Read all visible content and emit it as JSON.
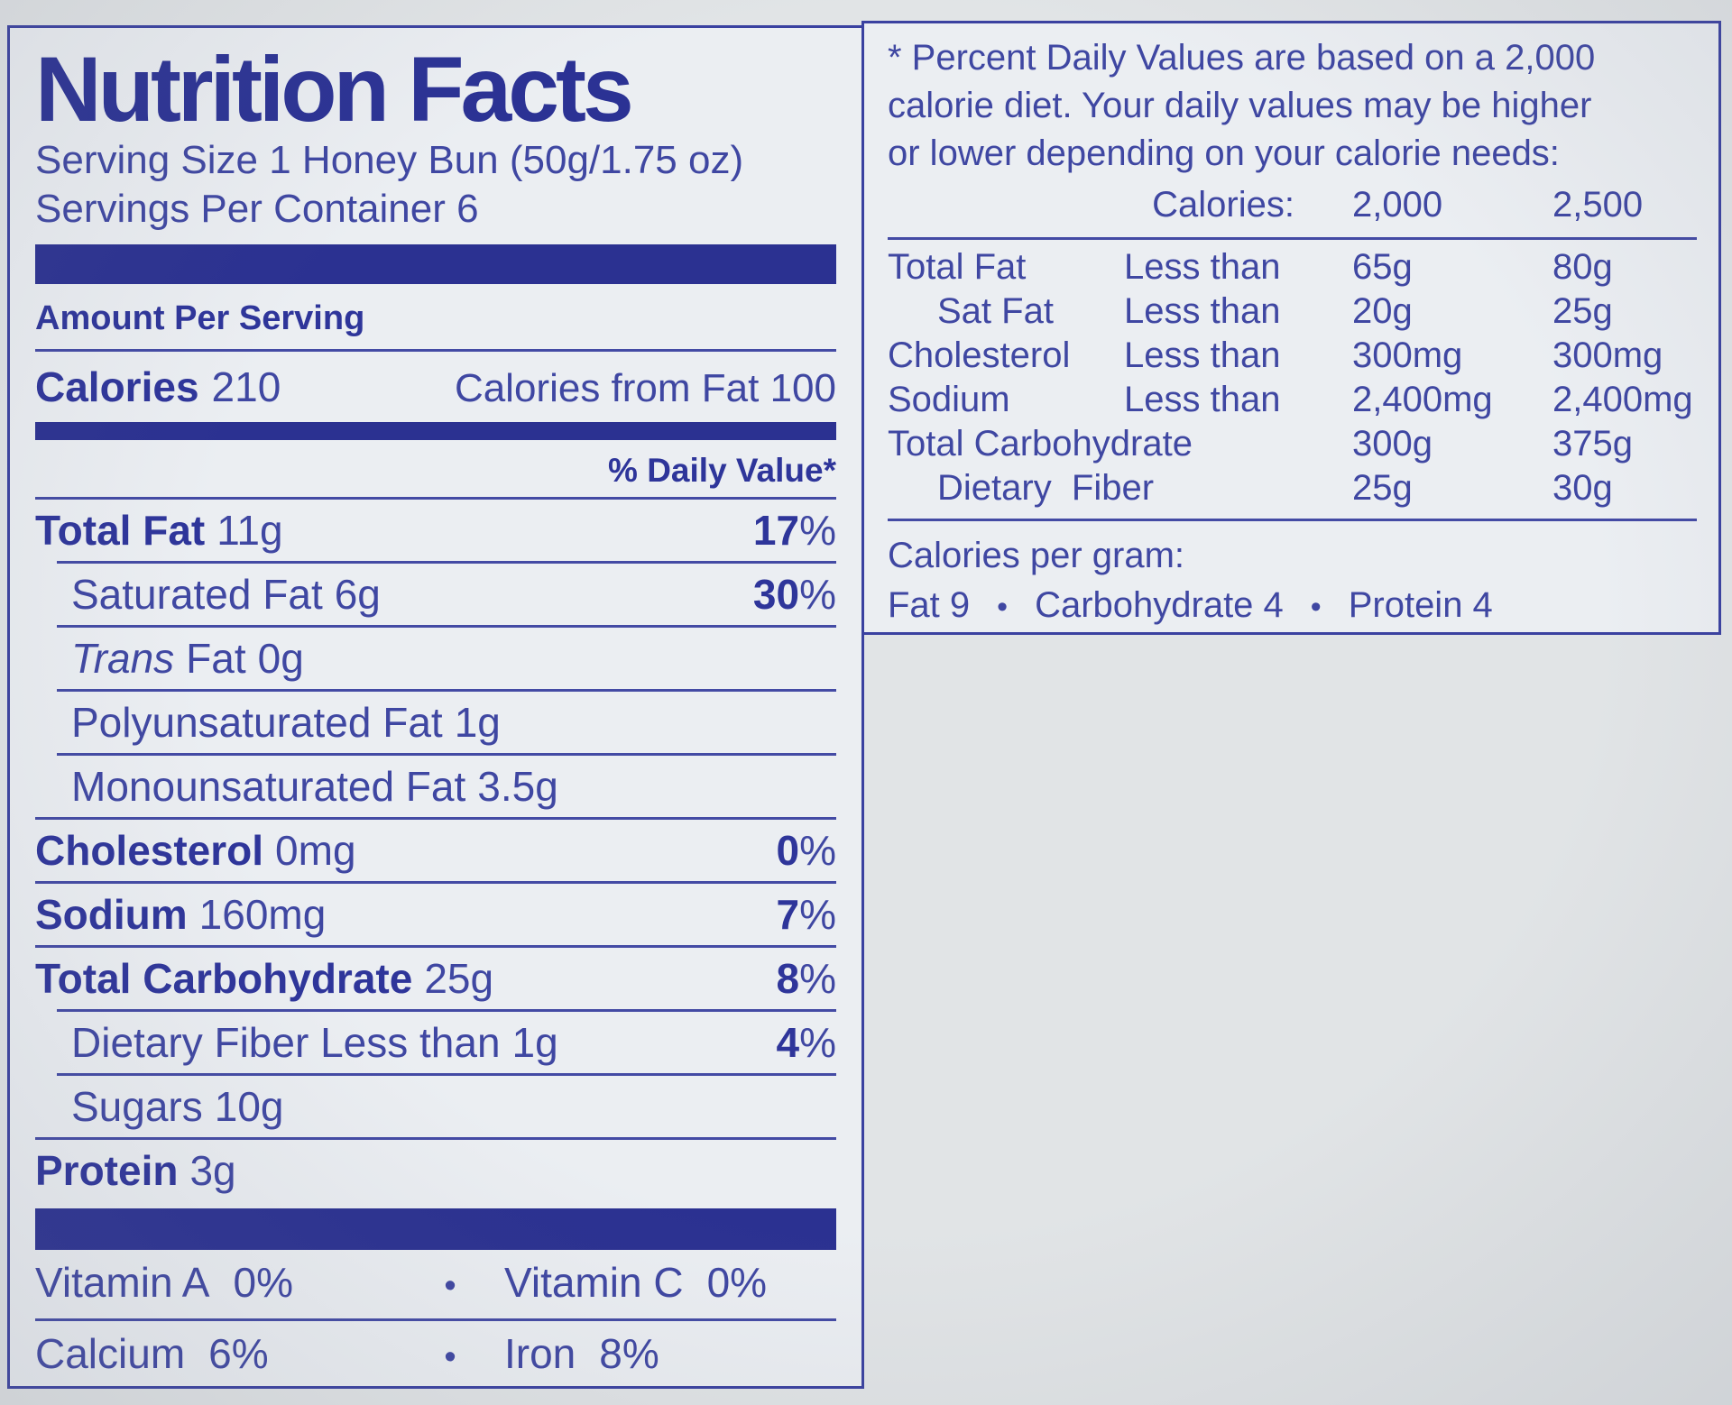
{
  "colors": {
    "ink_bold": "#2e359a",
    "ink_regular": "#3f47a2",
    "bar_blue": "#2b3191",
    "paper": "#ebeef2",
    "backdrop": "#e1e4e6"
  },
  "glyphs": {
    "bullet": "•",
    "percent": "%"
  },
  "panel": {
    "title": "Nutrition Facts",
    "serving_size": "Serving Size 1 Honey Bun (50g/1.75 oz)",
    "servings_per_container": "Servings Per Container 6",
    "amount_per_serving": "Amount Per Serving",
    "calories_label": "Calories",
    "calories_value": "210",
    "calories_from_fat": "Calories from Fat 100",
    "daily_value_header": "% Daily Value*",
    "rows": [
      {
        "label": "Total Fat",
        "amount": "11g",
        "dv": "17"
      },
      {
        "label": "Saturated Fat",
        "amount": "6g",
        "dv": "30"
      },
      {
        "label_italic": "Trans",
        "label": "Fat",
        "amount": "0g"
      },
      {
        "label": "Polyunsaturated Fat",
        "amount": "1g"
      },
      {
        "label": "Monounsaturated Fat",
        "amount": "3.5g"
      },
      {
        "label": "Cholesterol",
        "amount": "0mg",
        "dv": "0"
      },
      {
        "label": "Sodium",
        "amount": "160mg",
        "dv": "7"
      },
      {
        "label": "Total Carbohydrate",
        "amount": "25g",
        "dv": "8"
      },
      {
        "label": "Dietary Fiber Less than",
        "amount": "1g",
        "dv": "4"
      },
      {
        "label": "Sugars",
        "amount": "10g"
      },
      {
        "label": "Protein",
        "amount": "3g"
      }
    ],
    "vitamin_rows": [
      {
        "left_name": "Vitamin A",
        "left_value": "0%",
        "right_name": "Vitamin C",
        "right_value": "0%"
      },
      {
        "left_name": "Calcium",
        "left_value": "6%",
        "right_name": "Iron",
        "right_value": "8%"
      }
    ]
  },
  "footnote": {
    "lines": [
      "* Percent Daily Values are based on a 2,000",
      "calorie diet. Your daily values may be higher",
      "or lower depending on your calorie needs:"
    ],
    "header": {
      "label": "Calories:",
      "c2000": "2,000",
      "c2500": "2,500"
    },
    "rows": [
      {
        "name": "Total Fat",
        "qual": "Less than",
        "v1": "65g",
        "v2": "80g"
      },
      {
        "name": "Sat Fat",
        "qual": "Less than",
        "v1": "20g",
        "v2": "25g"
      },
      {
        "name": "Cholesterol",
        "qual": "Less than",
        "v1": "300mg",
        "v2": "300mg"
      },
      {
        "name": "Sodium",
        "qual": "Less than",
        "v1": "2,400mg",
        "v2": "2,400mg"
      },
      {
        "name": "Total Carbohydrate",
        "qual": "",
        "v1": "300g",
        "v2": "375g"
      },
      {
        "name": "Dietary  Fiber",
        "qual": "",
        "v1": "25g",
        "v2": "30g"
      }
    ],
    "calories_per_gram_label": "Calories per gram:",
    "cpg_items": [
      "Fat 9",
      "Carbohydrate 4",
      "Protein 4"
    ]
  }
}
